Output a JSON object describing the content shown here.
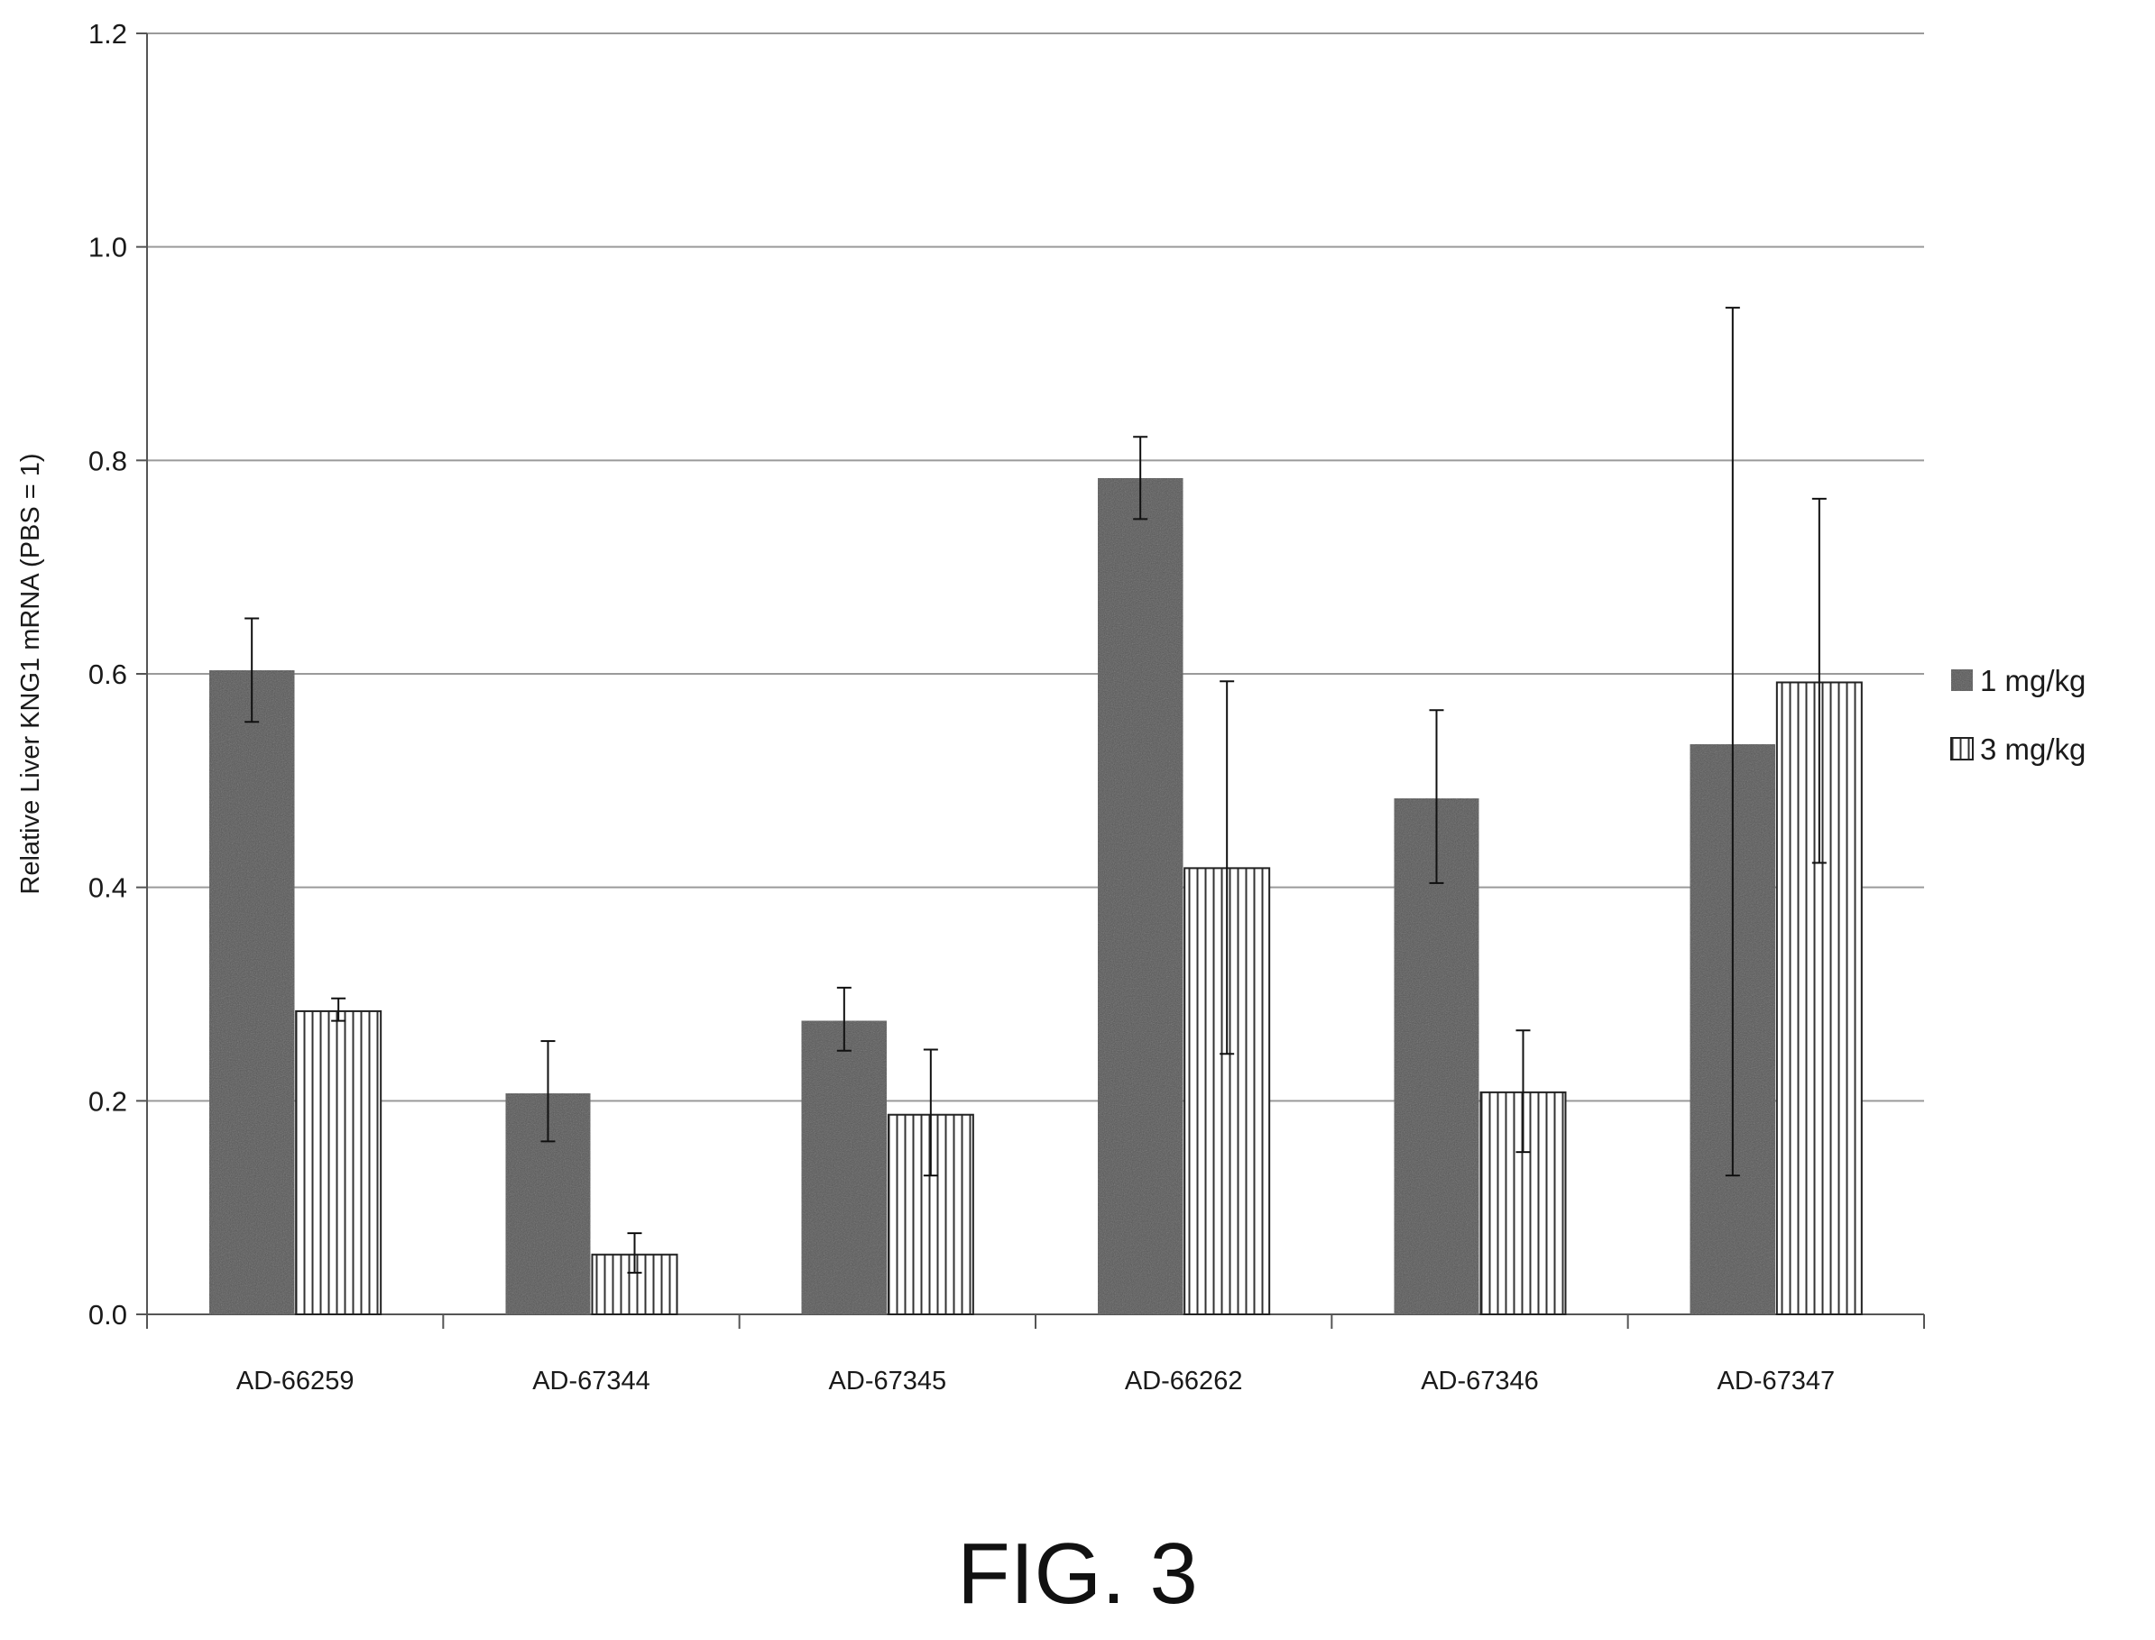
{
  "figure_label": "FIG. 3",
  "colors": {
    "series_1mg": "#555555",
    "series_3mg_fill": "#ffffff",
    "series_3mg_stripe": "#333333",
    "gridline": "#9a9a9a",
    "axis": "#555555"
  },
  "chart_data": {
    "type": "bar",
    "title": "",
    "xlabel": "",
    "ylabel": "Relative Liver KNG1 mRNA (PBS = 1)",
    "ylim": [
      0,
      1.2
    ],
    "yticks": [
      "0.0",
      "0.2",
      "0.4",
      "0.6",
      "0.8",
      "1.0",
      "1.2"
    ],
    "grid": true,
    "legend_position": "right",
    "categories": [
      "AD-66259",
      "AD-67344",
      "AD-67345",
      "AD-66262",
      "AD-67346",
      "AD-67347"
    ],
    "series": [
      {
        "name": "1 mg/kg",
        "pattern": "solid-dark",
        "values": [
          0.603,
          0.207,
          0.275,
          0.783,
          0.483,
          0.534
        ],
        "error_low": [
          0.555,
          0.162,
          0.247,
          0.745,
          0.404,
          0.13
        ],
        "error_high": [
          0.652,
          0.256,
          0.306,
          0.822,
          0.566,
          0.943
        ]
      },
      {
        "name": "3 mg/kg",
        "pattern": "vertical-stripes",
        "values": [
          0.284,
          0.056,
          0.187,
          0.418,
          0.208,
          0.592
        ],
        "error_low": [
          0.275,
          0.039,
          0.13,
          0.244,
          0.152,
          0.423
        ],
        "error_high": [
          0.296,
          0.076,
          0.248,
          0.593,
          0.266,
          0.764
        ]
      }
    ]
  }
}
